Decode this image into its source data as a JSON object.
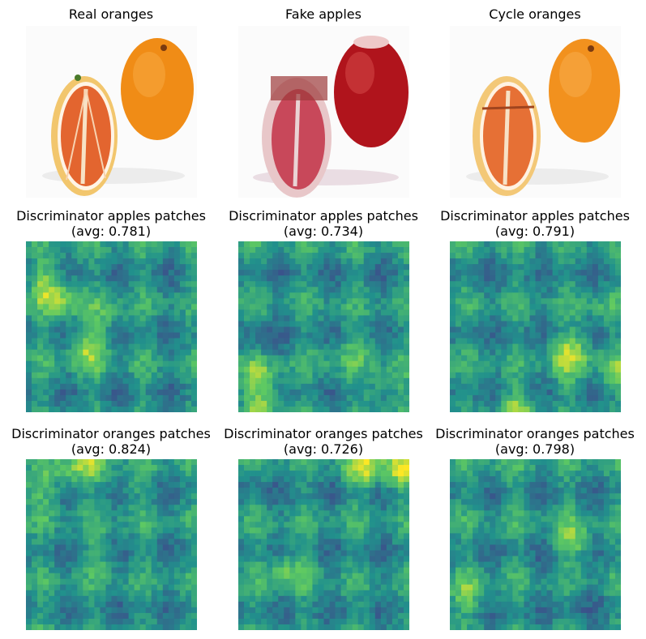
{
  "colors": {
    "background": "#ffffff",
    "orange_rind": "#f08c16",
    "orange_flesh": "#e3652f",
    "apple_red": "#b0141c",
    "apple_flesh": "#c8485a",
    "colormap": [
      "#440154",
      "#3b528b",
      "#21918c",
      "#5ec962",
      "#fde725"
    ]
  },
  "titles": {
    "real": "Real oranges",
    "fake": "Fake apples",
    "cycle": "Cycle oranges",
    "d_apples_1": "Discriminator apples patches\n(avg: 0.781)",
    "d_apples_2": "Discriminator apples patches\n(avg: 0.734)",
    "d_apples_3": "Discriminator apples patches\n(avg: 0.791)",
    "d_oranges_1": "Discriminator oranges patches\n(avg: 0.824)",
    "d_oranges_2": "Discriminator oranges patches\n(avg: 0.726)",
    "d_oranges_3": "Discriminator oranges patches\n(avg: 0.798)"
  }
}
